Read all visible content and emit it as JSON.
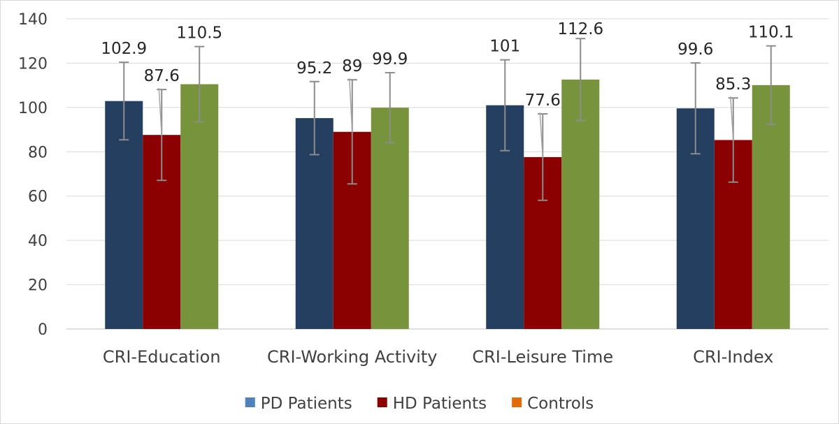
{
  "chart_data": {
    "type": "bar",
    "title": "",
    "xlabel": "",
    "ylabel": "",
    "ylim": [
      0,
      140
    ],
    "yticks": [
      0,
      20,
      40,
      60,
      80,
      100,
      120,
      140
    ],
    "grid": true,
    "legend_position": "bottom",
    "categories": [
      "CRI-Education",
      "CRI-Working Activity",
      "CRI-Leisure Time",
      "CRI-Index"
    ],
    "series": [
      {
        "name": "PD Patients",
        "bar_color": "#243F60",
        "legend_color": "#4F81BD",
        "values": [
          102.9,
          95.2,
          101,
          99.6
        ],
        "labels": [
          "102.9",
          "95.2",
          "101",
          "99.6"
        ],
        "error": [
          17.5,
          16.5,
          20.5,
          20.5
        ]
      },
      {
        "name": "HD Patients",
        "bar_color": "#8B0000",
        "legend_color": "#8B0000",
        "values": [
          87.6,
          89,
          77.6,
          85.3
        ],
        "labels": [
          "87.6",
          "89",
          "77.6",
          "85.3"
        ],
        "error": [
          20.5,
          23.5,
          19.5,
          19
        ]
      },
      {
        "name": "Controls",
        "bar_color": "#77933C",
        "legend_color": "#E36C09",
        "values": [
          110.5,
          99.9,
          112.6,
          110.1
        ],
        "labels": [
          "110.5",
          "99.9",
          "112.6",
          "110.1"
        ],
        "error": [
          17,
          15.8,
          18.5,
          17.7
        ]
      }
    ]
  }
}
